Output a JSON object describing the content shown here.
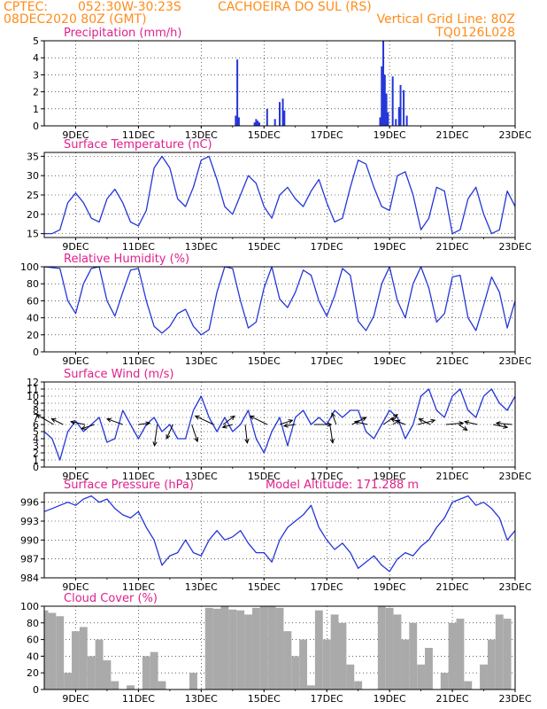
{
  "header": {
    "source": "CPTEC:",
    "coords": "052:30W-30:23S",
    "location": "CACHOEIRA DO SUL (RS)",
    "run_date": "08DEC2020 80Z (GMT)",
    "grid_note": "Vertical Grid Line: 80Z",
    "model_code": "TQ0126L028"
  },
  "colors": {
    "header": "#ff8c1a",
    "panel_title": "#e0208c",
    "line": "#2436d8",
    "bar": "#2436d8",
    "cloud": "#aaaaaa",
    "arrow": "#000000"
  },
  "x_ticks": [
    "9DEC",
    "11DEC",
    "13DEC",
    "15DEC",
    "17DEC",
    "19DEC",
    "21DEC",
    "23DEC"
  ],
  "chart_data": [
    {
      "type": "bar",
      "title": "Precipitation (mm/h)",
      "ylim": [
        0,
        5
      ],
      "yticks": [
        0,
        1,
        2,
        3,
        4,
        5
      ],
      "xlim": [
        8.0,
        23.0
      ],
      "x": [
        14.1,
        14.15,
        14.2,
        14.7,
        14.75,
        14.8,
        14.85,
        15.1,
        15.35,
        15.5,
        15.6,
        15.65,
        18.7,
        18.75,
        18.8,
        18.85,
        18.9,
        18.95,
        19.1,
        19.2,
        19.3,
        19.35,
        19.45,
        19.55
      ],
      "values": [
        0.6,
        3.9,
        0.5,
        0.2,
        0.4,
        0.3,
        0.2,
        1.0,
        0.4,
        1.4,
        1.6,
        0.9,
        0.5,
        3.5,
        5.0,
        3.0,
        1.9,
        0.8,
        2.9,
        0.4,
        1.1,
        2.4,
        2.1,
        0.6
      ]
    },
    {
      "type": "line",
      "title": "Surface Temperature (nC)",
      "ylim": [
        14,
        36
      ],
      "yticks": [
        15,
        20,
        25,
        30,
        35
      ],
      "xlim": [
        8.0,
        23.0
      ],
      "x": [
        8.0,
        8.25,
        8.5,
        8.75,
        9.0,
        9.25,
        9.5,
        9.75,
        10.0,
        10.25,
        10.5,
        10.75,
        11.0,
        11.25,
        11.5,
        11.75,
        12.0,
        12.25,
        12.5,
        12.75,
        13.0,
        13.25,
        13.5,
        13.75,
        14.0,
        14.25,
        14.5,
        14.75,
        15.0,
        15.25,
        15.5,
        15.75,
        16.0,
        16.25,
        16.5,
        16.75,
        17.0,
        17.25,
        17.5,
        17.75,
        18.0,
        18.25,
        18.5,
        18.75,
        19.0,
        19.25,
        19.5,
        19.75,
        20.0,
        20.25,
        20.5,
        20.75,
        21.0,
        21.25,
        21.5,
        21.75,
        22.0,
        22.25,
        22.5,
        22.75,
        23.0
      ],
      "values": [
        15,
        15,
        16,
        23,
        25.5,
        23,
        19,
        18,
        24,
        26.5,
        23,
        18,
        17,
        21,
        32,
        35,
        32,
        24,
        22,
        27,
        34,
        35,
        29,
        22,
        20,
        25,
        30,
        28,
        22,
        19,
        25,
        27,
        24,
        22,
        26,
        29,
        23,
        18,
        19,
        27,
        34,
        33,
        27,
        22,
        21,
        30,
        31,
        25,
        16,
        19,
        27,
        26,
        15,
        16,
        24,
        27,
        20,
        15,
        16,
        26,
        22
      ]
    },
    {
      "type": "line",
      "title": "Relative Humidity (%)",
      "ylim": [
        0,
        100
      ],
      "yticks": [
        0,
        20,
        40,
        60,
        80,
        100
      ],
      "xlim": [
        8.0,
        23.0
      ],
      "x": [
        8.0,
        8.25,
        8.5,
        8.75,
        9.0,
        9.25,
        9.5,
        9.75,
        10.0,
        10.25,
        10.5,
        10.75,
        11.0,
        11.25,
        11.5,
        11.75,
        12.0,
        12.25,
        12.5,
        12.75,
        13.0,
        13.25,
        13.5,
        13.75,
        14.0,
        14.25,
        14.5,
        14.75,
        15.0,
        15.25,
        15.5,
        15.75,
        16.0,
        16.25,
        16.5,
        16.75,
        17.0,
        17.25,
        17.5,
        17.75,
        18.0,
        18.25,
        18.5,
        18.75,
        19.0,
        19.25,
        19.5,
        19.75,
        20.0,
        20.25,
        20.5,
        20.75,
        21.0,
        21.25,
        21.5,
        21.75,
        22.0,
        22.25,
        22.5,
        22.75,
        23.0
      ],
      "values": [
        100,
        99,
        98,
        60,
        45,
        80,
        98,
        100,
        60,
        42,
        70,
        96,
        98,
        60,
        30,
        22,
        30,
        45,
        50,
        30,
        20,
        26,
        70,
        100,
        98,
        60,
        28,
        35,
        75,
        100,
        62,
        52,
        70,
        96,
        90,
        60,
        42,
        66,
        98,
        90,
        36,
        25,
        42,
        80,
        100,
        60,
        40,
        80,
        100,
        75,
        35,
        45,
        88,
        90,
        40,
        25,
        55,
        88,
        70,
        28,
        60
      ]
    },
    {
      "type": "line",
      "title": "Surface Wind (m/s)",
      "ylim": [
        0,
        12
      ],
      "yticks": [
        0,
        1,
        2,
        3,
        4,
        5,
        6,
        7,
        8,
        9,
        10,
        11,
        12
      ],
      "xlim": [
        8.0,
        23.0
      ],
      "x": [
        8.0,
        8.25,
        8.5,
        8.75,
        9.0,
        9.25,
        9.5,
        9.75,
        10.0,
        10.25,
        10.5,
        10.75,
        11.0,
        11.25,
        11.5,
        11.75,
        12.0,
        12.25,
        12.5,
        12.75,
        13.0,
        13.25,
        13.5,
        13.75,
        14.0,
        14.25,
        14.5,
        14.75,
        15.0,
        15.25,
        15.5,
        15.75,
        16.0,
        16.25,
        16.5,
        16.75,
        17.0,
        17.25,
        17.5,
        17.75,
        18.0,
        18.25,
        18.5,
        18.75,
        19.0,
        19.25,
        19.5,
        19.75,
        20.0,
        20.25,
        20.5,
        20.75,
        21.0,
        21.25,
        21.5,
        21.75,
        22.0,
        22.25,
        22.5,
        22.75,
        23.0
      ],
      "values": [
        5,
        4,
        1,
        5,
        6.5,
        5,
        6,
        7,
        3.5,
        4,
        8,
        6,
        4,
        6,
        7,
        5,
        6,
        4,
        4,
        8,
        10,
        7,
        5,
        7,
        5,
        6,
        8,
        4,
        2,
        5,
        7,
        3,
        7,
        8,
        6,
        7,
        6,
        8,
        7,
        8,
        8,
        5,
        4,
        6,
        8,
        7,
        4,
        6,
        10,
        11,
        8,
        7,
        10,
        11,
        8,
        7,
        10,
        11,
        9,
        8,
        10
      ],
      "arrows": {
        "x": [
          8.3,
          8.6,
          9.3,
          9.6,
          10.5,
          11.0,
          11.6,
          12.1,
          12.7,
          13.4,
          13.7,
          14.0,
          14.4,
          15.1,
          15.5,
          16.0,
          16.6,
          17.1,
          17.3,
          17.8,
          18.3,
          18.8,
          19.1,
          19.5,
          19.9,
          20.3,
          20.8,
          21.2,
          21.8,
          22.3,
          22.9
        ],
        "u": [
          -2.4,
          -1.6,
          -2.0,
          -1.8,
          -2.2,
          1.6,
          -0.4,
          -0.9,
          0.8,
          -2.6,
          1.6,
          -1.4,
          0.3,
          -2.4,
          1.8,
          -1.6,
          2.4,
          0.4,
          -0.6,
          2.0,
          -1.8,
          2.0,
          1.0,
          -2.0,
          2.4,
          -1.6,
          2.4,
          1.2,
          -1.8,
          2.0,
          -2.2
        ],
        "v": [
          1.4,
          0.8,
          0.4,
          -0.6,
          0.8,
          0.2,
          -3.0,
          -2.0,
          -2.4,
          1.2,
          1.2,
          -0.4,
          -2.6,
          1.2,
          0.6,
          -0.2,
          0.0,
          -2.6,
          1.6,
          1.0,
          0.4,
          1.4,
          0.6,
          0.8,
          0.6,
          0.8,
          0.2,
          -0.8,
          0.4,
          -0.4,
          0.2
        ]
      }
    },
    {
      "type": "line",
      "title": "Surface Pressure (hPa)",
      "subtitle": "Model Altitude: 171.288 m",
      "ylim": [
        984,
        997.5
      ],
      "yticks": [
        984,
        987,
        990,
        993,
        996
      ],
      "xlim": [
        8.0,
        23.0
      ],
      "x": [
        8.0,
        8.25,
        8.5,
        8.75,
        9.0,
        9.25,
        9.5,
        9.75,
        10.0,
        10.25,
        10.5,
        10.75,
        11.0,
        11.25,
        11.5,
        11.75,
        12.0,
        12.25,
        12.5,
        12.75,
        13.0,
        13.25,
        13.5,
        13.75,
        14.0,
        14.25,
        14.5,
        14.75,
        15.0,
        15.25,
        15.5,
        15.75,
        16.0,
        16.25,
        16.5,
        16.75,
        17.0,
        17.25,
        17.5,
        17.75,
        18.0,
        18.25,
        18.5,
        18.75,
        19.0,
        19.25,
        19.5,
        19.75,
        20.0,
        20.25,
        20.5,
        20.75,
        21.0,
        21.25,
        21.5,
        21.75,
        22.0,
        22.25,
        22.5,
        22.75,
        23.0
      ],
      "values": [
        994.5,
        995,
        995.5,
        996,
        995.5,
        996.5,
        997,
        996,
        996.5,
        995,
        994,
        993.5,
        994.5,
        992,
        990,
        986,
        987.5,
        988,
        990,
        988,
        987.5,
        990,
        991.5,
        990,
        990.5,
        991.5,
        989.5,
        988,
        988,
        986.5,
        990,
        992,
        993,
        994,
        995.5,
        992,
        990,
        988.5,
        989.5,
        988,
        985.5,
        986.5,
        987.5,
        986,
        985,
        987,
        988,
        987.5,
        989,
        990,
        992,
        993.5,
        996,
        996.5,
        997,
        995.5,
        996,
        995,
        993.5,
        990,
        991.5
      ]
    },
    {
      "type": "bar",
      "title": "Cloud Cover (%)",
      "ylim": [
        0,
        100
      ],
      "yticks": [
        0,
        20,
        40,
        60,
        80,
        100
      ],
      "xlim": [
        8.0,
        23.0
      ],
      "x": [
        8.0,
        8.25,
        8.5,
        8.75,
        9.0,
        9.25,
        9.5,
        9.75,
        10.0,
        10.25,
        10.5,
        10.75,
        11.0,
        11.25,
        11.5,
        11.75,
        12.0,
        12.25,
        12.5,
        12.75,
        13.0,
        13.25,
        13.5,
        13.75,
        14.0,
        14.25,
        14.5,
        14.75,
        15.0,
        15.25,
        15.5,
        15.75,
        16.0,
        16.25,
        16.5,
        16.75,
        17.0,
        17.25,
        17.5,
        17.75,
        18.0,
        18.25,
        18.5,
        18.75,
        19.0,
        19.25,
        19.5,
        19.75,
        20.0,
        20.25,
        20.5,
        20.75,
        21.0,
        21.25,
        21.5,
        21.75,
        22.0,
        22.25,
        22.5,
        22.75,
        23.0
      ],
      "values": [
        95,
        92,
        88,
        20,
        70,
        75,
        40,
        60,
        35,
        10,
        0,
        5,
        0,
        40,
        45,
        10,
        0,
        0,
        0,
        20,
        0,
        98,
        97,
        100,
        96,
        95,
        90,
        98,
        100,
        100,
        98,
        70,
        40,
        60,
        5,
        95,
        60,
        90,
        80,
        30,
        10,
        0,
        0,
        100,
        98,
        90,
        60,
        80,
        30,
        50,
        0,
        20,
        80,
        85,
        10,
        0,
        30,
        60,
        90,
        85,
        0
      ]
    }
  ]
}
